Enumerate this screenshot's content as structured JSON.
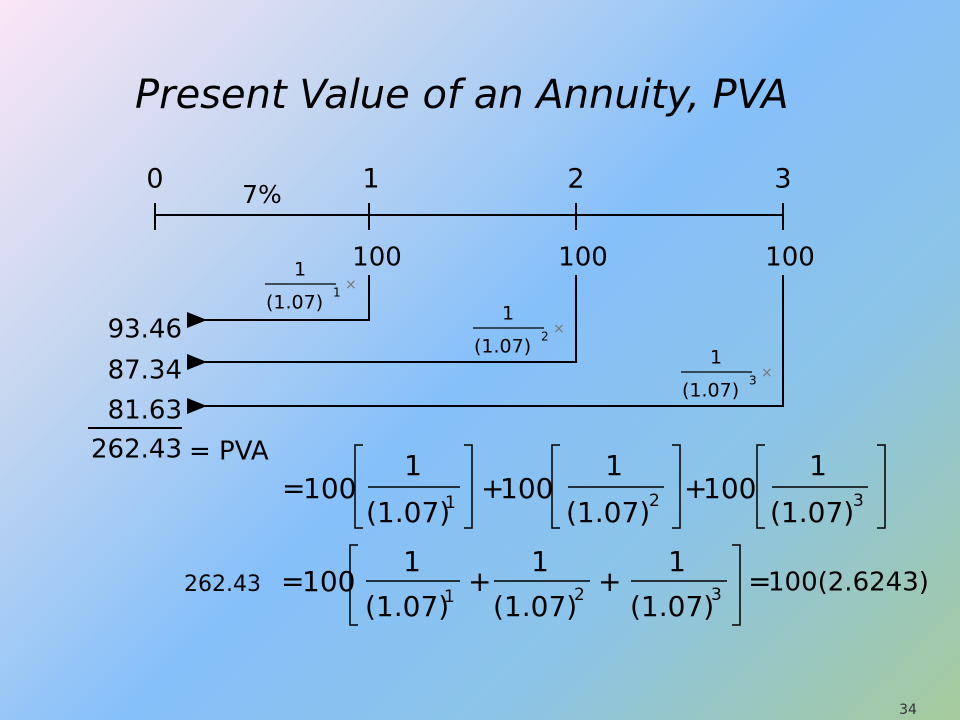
{
  "title": "Present Value of an Annuity, PVA",
  "timeline": {
    "periods": [
      "0",
      "1",
      "2",
      "3"
    ],
    "rate": "7%",
    "cash_flows": [
      "100",
      "100",
      "100"
    ]
  },
  "discount_factors": [
    {
      "numerator": "1",
      "base": "(1.07)",
      "exponent": "1",
      "operator": "×"
    },
    {
      "numerator": "1",
      "base": "(1.07)",
      "exponent": "2",
      "operator": "×"
    },
    {
      "numerator": "1",
      "base": "(1.07)",
      "exponent": "3",
      "operator": "×"
    }
  ],
  "present_values": [
    "93.46",
    "87.34",
    "81.63"
  ],
  "total": {
    "value": "262.43",
    "label": "= PVA"
  },
  "equation1": {
    "equals": "=",
    "plus": "+",
    "terms": [
      {
        "coefficient": "100",
        "numerator": "1",
        "base": "(1.07)",
        "exponent": "1"
      },
      {
        "coefficient": "100",
        "numerator": "1",
        "base": "(1.07)",
        "exponent": "2"
      },
      {
        "coefficient": "100",
        "numerator": "1",
        "base": "(1.07)",
        "exponent": "3"
      }
    ]
  },
  "equation2": {
    "lhs": "262.43",
    "equals": "=",
    "coefficient": "100",
    "plus": "+",
    "terms": [
      {
        "numerator": "1",
        "base": "(1.07)",
        "exponent": "1"
      },
      {
        "numerator": "1",
        "base": "(1.07)",
        "exponent": "2"
      },
      {
        "numerator": "1",
        "base": "(1.07)",
        "exponent": "3"
      }
    ],
    "result": "100(2.6243)"
  },
  "page_number": "34"
}
